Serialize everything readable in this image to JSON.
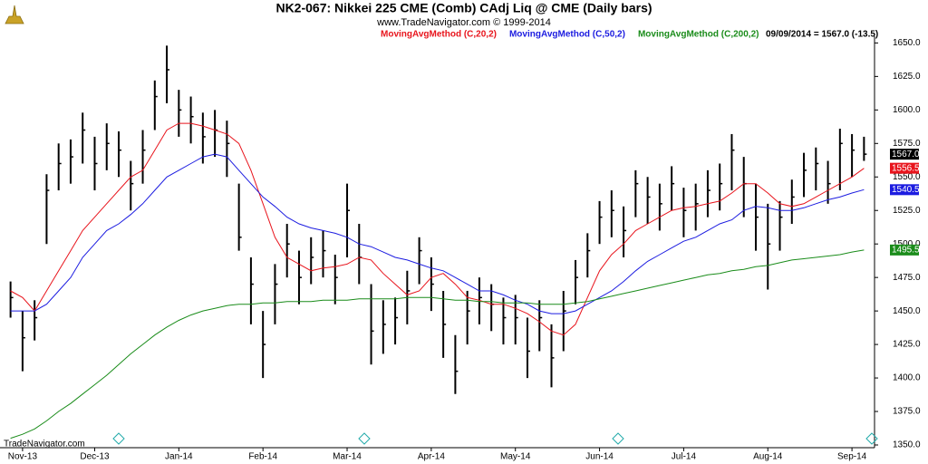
{
  "chart_data": {
    "type": "ohlc",
    "title": "NK2-067:  Nikkei 225 CME (Comb) CAdj Liq @ CME  (Daily bars)",
    "subtitle": "www.TradeNavigator.com © 1999-2014",
    "status": "09/09/2014 = 1567.0 (-13.5)",
    "footer": "TradeNavigator.com",
    "color": "#000000",
    "categories": [
      null,
      "Nov-13",
      null,
      null,
      null,
      null,
      null,
      "Dec-13",
      null,
      null,
      null,
      null,
      null,
      null,
      "Jan-14",
      null,
      null,
      null,
      null,
      null,
      null,
      "Feb-14",
      null,
      null,
      null,
      null,
      null,
      null,
      "Mar-14",
      null,
      null,
      null,
      null,
      null,
      null,
      "Apr-14",
      null,
      null,
      null,
      null,
      null,
      null,
      "May-14",
      null,
      null,
      null,
      null,
      null,
      null,
      "Jun-14",
      null,
      null,
      null,
      null,
      null,
      null,
      "Jul-14",
      null,
      null,
      null,
      null,
      null,
      null,
      "Aug-14",
      null,
      null,
      null,
      null,
      null,
      null,
      "Sep-14",
      null
    ],
    "high": [
      1472,
      1450,
      1458,
      1552,
      1575,
      1578,
      1598,
      1580,
      1590,
      1584,
      1562,
      1585,
      1622,
      1648,
      1615,
      1610,
      1598,
      1600,
      1592,
      1545,
      1490,
      1450,
      1485,
      1515,
      1495,
      1505,
      1510,
      1492,
      1545,
      1515,
      1470,
      1458,
      1460,
      1480,
      1505,
      1490,
      1465,
      1432,
      1465,
      1475,
      1470,
      1460,
      1462,
      1445,
      1458,
      1440,
      1465,
      1488,
      1508,
      1532,
      1540,
      1528,
      1555,
      1550,
      1545,
      1558,
      1542,
      1545,
      1555,
      1560,
      1582,
      1565,
      1545,
      1530,
      1532,
      1548,
      1568,
      1572,
      1562,
      1586,
      1582,
      1580
    ],
    "low": [
      1445,
      1405,
      1428,
      1500,
      1540,
      1545,
      1560,
      1540,
      1555,
      1550,
      1525,
      1545,
      1585,
      1605,
      1580,
      1575,
      1560,
      1565,
      1550,
      1495,
      1440,
      1400,
      1440,
      1475,
      1455,
      1470,
      1475,
      1455,
      1490,
      1470,
      1410,
      1418,
      1425,
      1440,
      1470,
      1450,
      1415,
      1388,
      1425,
      1440,
      1435,
      1425,
      1425,
      1400,
      1420,
      1393,
      1420,
      1455,
      1475,
      1500,
      1505,
      1490,
      1520,
      1515,
      1510,
      1525,
      1505,
      1510,
      1520,
      1525,
      1540,
      1520,
      1495,
      1466,
      1495,
      1515,
      1535,
      1540,
      1530,
      1540,
      1550,
      1562
    ],
    "close": [
      1460,
      1430,
      1445,
      1540,
      1560,
      1565,
      1585,
      1560,
      1575,
      1570,
      1545,
      1570,
      1610,
      1630,
      1600,
      1595,
      1580,
      1585,
      1575,
      1505,
      1470,
      1425,
      1470,
      1500,
      1475,
      1490,
      1495,
      1475,
      1525,
      1490,
      1435,
      1440,
      1445,
      1465,
      1495,
      1470,
      1440,
      1405,
      1450,
      1460,
      1455,
      1445,
      1445,
      1420,
      1445,
      1415,
      1450,
      1475,
      1495,
      1520,
      1525,
      1510,
      1545,
      1535,
      1530,
      1545,
      1525,
      1530,
      1540,
      1545,
      1570,
      1545,
      1520,
      1500,
      1520,
      1535,
      1555,
      1560,
      1545,
      1575,
      1570,
      1567
    ],
    "close_label": "1567.0",
    "close_label_color": "#000000",
    "series": [
      {
        "name": "MovingAvgMethod (C,20,2)",
        "color": "#e8141c",
        "last_label": "1556.5",
        "values": [
          1465,
          1460,
          1450,
          1465,
          1480,
          1495,
          1510,
          1520,
          1530,
          1540,
          1550,
          1555,
          1570,
          1585,
          1590,
          1590,
          1588,
          1585,
          1582,
          1575,
          1555,
          1530,
          1505,
          1490,
          1485,
          1480,
          1482,
          1483,
          1485,
          1490,
          1488,
          1478,
          1470,
          1462,
          1465,
          1475,
          1478,
          1470,
          1460,
          1458,
          1455,
          1455,
          1452,
          1448,
          1442,
          1435,
          1432,
          1440,
          1460,
          1480,
          1492,
          1500,
          1510,
          1515,
          1520,
          1525,
          1527,
          1528,
          1530,
          1532,
          1538,
          1545,
          1545,
          1538,
          1530,
          1528,
          1530,
          1535,
          1540,
          1545,
          1550,
          1556.5
        ]
      },
      {
        "name": "MovingAvgMethod (C,50,2)",
        "color": "#1c1ce0",
        "last_label": "1540.5",
        "values": [
          1450,
          1450,
          1450,
          1455,
          1465,
          1475,
          1490,
          1500,
          1510,
          1515,
          1522,
          1530,
          1540,
          1550,
          1555,
          1560,
          1565,
          1567,
          1565,
          1555,
          1545,
          1535,
          1528,
          1520,
          1515,
          1512,
          1510,
          1508,
          1505,
          1500,
          1498,
          1494,
          1490,
          1488,
          1485,
          1482,
          1480,
          1475,
          1470,
          1465,
          1465,
          1462,
          1458,
          1455,
          1450,
          1448,
          1448,
          1450,
          1455,
          1460,
          1465,
          1472,
          1480,
          1487,
          1492,
          1497,
          1502,
          1505,
          1510,
          1515,
          1518,
          1525,
          1528,
          1527,
          1525,
          1525,
          1527,
          1530,
          1533,
          1535,
          1538,
          1540.5
        ]
      },
      {
        "name": "MovingAvgMethod (C,200,2)",
        "color": "#1a8c1a",
        "last_label": "1495.5",
        "values": [
          1355,
          1358,
          1362,
          1368,
          1375,
          1381,
          1388,
          1395,
          1402,
          1410,
          1418,
          1425,
          1432,
          1438,
          1443,
          1447,
          1450,
          1452,
          1454,
          1455,
          1455,
          1456,
          1456,
          1457,
          1457,
          1457,
          1458,
          1458,
          1458,
          1459,
          1459,
          1459,
          1459,
          1460,
          1460,
          1460,
          1459,
          1458,
          1458,
          1457,
          1457,
          1456,
          1456,
          1456,
          1455,
          1455,
          1455,
          1456,
          1457,
          1459,
          1461,
          1463,
          1465,
          1467,
          1469,
          1471,
          1473,
          1475,
          1477,
          1478,
          1480,
          1481,
          1483,
          1484,
          1486,
          1488,
          1489,
          1490,
          1491,
          1492,
          1494,
          1495.5
        ]
      }
    ],
    "ylim": [
      1350,
      1655
    ],
    "yticks": [
      {
        "value": 1350,
        "label": "1350.0"
      },
      {
        "value": 1375,
        "label": "1375.0"
      },
      {
        "value": 1400,
        "label": "1400.0"
      },
      {
        "value": 1425,
        "label": "1425.0"
      },
      {
        "value": 1450,
        "label": "1450.0"
      },
      {
        "value": 1475,
        "label": "1475.0"
      },
      {
        "value": 1500,
        "label": "1500.0"
      },
      {
        "value": 1525,
        "label": "1525.0"
      },
      {
        "value": 1550,
        "label": "1550.0"
      },
      {
        "value": 1575,
        "label": "1575.0"
      },
      {
        "value": 1600,
        "label": "1600.0"
      },
      {
        "value": 1625,
        "label": "1625.0"
      },
      {
        "value": 1650,
        "label": "1650.0"
      }
    ],
    "grid": false
  }
}
